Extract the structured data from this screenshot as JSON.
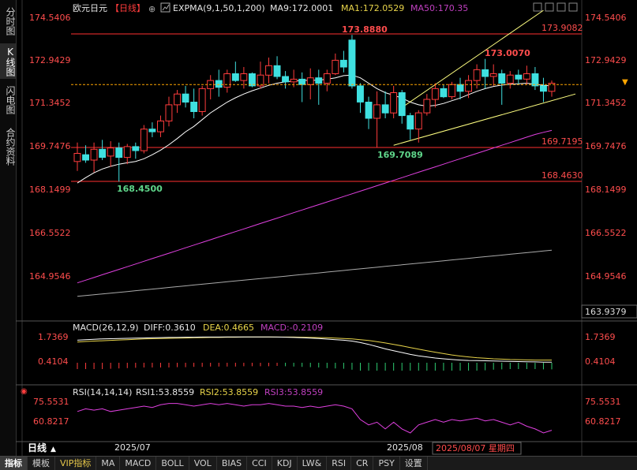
{
  "sidebar": {
    "tabs": [
      {
        "label": "分时图",
        "active": false
      },
      {
        "label": "K线图",
        "active": true
      },
      {
        "label": "闪电图",
        "active": false
      },
      {
        "label": "合约资料",
        "active": false
      }
    ]
  },
  "header": {
    "symbol": "欧元日元",
    "period": "【日线】",
    "indicator": "EXPMA(9,1,50,1,200)",
    "ma9": "MA9:172.0001",
    "ma1": "MA1:172.0529",
    "ma50": "MA50:170.35"
  },
  "colors": {
    "up": "#ff3c3c",
    "down": "#3fe0e0",
    "ma9": "#ffffff",
    "ma50": "#e040e0",
    "ma200": "#aaaaaa",
    "channel": "#ffff80",
    "hline": "#ff3030",
    "axis_text": "#ff4d4d",
    "label_green": "#5fd68a"
  },
  "price_axis": {
    "ticks": [
      "174.5406",
      "172.9429",
      "171.3452",
      "169.7476",
      "168.1499",
      "166.5522",
      "164.9546"
    ],
    "min_price_label": "163.9379"
  },
  "annotations": {
    "high": "173.8880",
    "low1": "168.4500",
    "low2": "169.7089",
    "recent_high": "173.0070",
    "level_1": "173.9082",
    "level_2": "169.7195",
    "level_3": "168.4630"
  },
  "macd": {
    "title": "MACD(26,12,9)",
    "diff": "DIFF:0.3610",
    "dea": "DEA:0.4665",
    "macd": "MACD:-0.2109",
    "ticks": [
      "1.7369",
      "0.4104"
    ]
  },
  "rsi": {
    "title": "RSI(14,14,14)",
    "rsi1": "RSI1:53.8559",
    "rsi2": "RSI2:53.8559",
    "rsi3": "RSI3:53.8559",
    "ticks": [
      "75.5531",
      "60.8217"
    ]
  },
  "xaxis": {
    "period_label": "日线",
    "labels": [
      "2025/07",
      "2025/08"
    ],
    "cursor_date": "2025/08/07 星期四"
  },
  "bottom_tabs": [
    "指标",
    "模板",
    "VIP指标",
    "MA",
    "MACD",
    "BOLL",
    "VOL",
    "BIAS",
    "CCI",
    "KDJ",
    "LW&",
    "RSI",
    "CR",
    "PSY",
    "设置"
  ],
  "chart_data": {
    "type": "candlestick",
    "candles": [
      {
        "o": 169.2,
        "h": 169.9,
        "l": 168.85,
        "c": 169.5
      },
      {
        "o": 169.45,
        "h": 169.8,
        "l": 169.15,
        "c": 169.25
      },
      {
        "o": 169.25,
        "h": 169.9,
        "l": 168.8,
        "c": 169.65
      },
      {
        "o": 169.65,
        "h": 170.0,
        "l": 169.25,
        "c": 169.35
      },
      {
        "o": 169.4,
        "h": 169.95,
        "l": 169.0,
        "c": 169.7
      },
      {
        "o": 169.7,
        "h": 169.9,
        "l": 168.45,
        "c": 169.35
      },
      {
        "o": 169.35,
        "h": 169.85,
        "l": 169.1,
        "c": 169.75
      },
      {
        "o": 169.75,
        "h": 169.9,
        "l": 169.3,
        "c": 169.6
      },
      {
        "o": 169.6,
        "h": 170.55,
        "l": 169.5,
        "c": 170.4
      },
      {
        "o": 170.4,
        "h": 170.65,
        "l": 170.1,
        "c": 170.3
      },
      {
        "o": 170.3,
        "h": 170.9,
        "l": 170.1,
        "c": 170.7
      },
      {
        "o": 170.7,
        "h": 171.6,
        "l": 170.5,
        "c": 171.3
      },
      {
        "o": 171.3,
        "h": 171.85,
        "l": 171.0,
        "c": 171.7
      },
      {
        "o": 171.7,
        "h": 172.0,
        "l": 171.2,
        "c": 171.4
      },
      {
        "o": 171.4,
        "h": 171.9,
        "l": 170.8,
        "c": 171.05
      },
      {
        "o": 171.05,
        "h": 172.0,
        "l": 170.9,
        "c": 171.9
      },
      {
        "o": 171.9,
        "h": 172.4,
        "l": 171.5,
        "c": 172.2
      },
      {
        "o": 172.2,
        "h": 172.6,
        "l": 171.6,
        "c": 171.95
      },
      {
        "o": 171.95,
        "h": 172.6,
        "l": 171.75,
        "c": 172.45
      },
      {
        "o": 172.45,
        "h": 172.9,
        "l": 172.15,
        "c": 172.2
      },
      {
        "o": 172.2,
        "h": 172.7,
        "l": 171.9,
        "c": 172.45
      },
      {
        "o": 172.45,
        "h": 172.5,
        "l": 171.95,
        "c": 172.0
      },
      {
        "o": 172.0,
        "h": 172.9,
        "l": 171.9,
        "c": 172.4
      },
      {
        "o": 172.4,
        "h": 173.05,
        "l": 172.1,
        "c": 172.75
      },
      {
        "o": 172.75,
        "h": 173.1,
        "l": 172.25,
        "c": 172.35
      },
      {
        "o": 172.35,
        "h": 172.55,
        "l": 171.9,
        "c": 172.15
      },
      {
        "o": 172.15,
        "h": 172.6,
        "l": 171.95,
        "c": 172.25
      },
      {
        "o": 172.25,
        "h": 172.5,
        "l": 171.4,
        "c": 172.05
      },
      {
        "o": 172.05,
        "h": 172.65,
        "l": 171.5,
        "c": 172.3
      },
      {
        "o": 172.3,
        "h": 172.6,
        "l": 171.3,
        "c": 172.1
      },
      {
        "o": 172.1,
        "h": 172.6,
        "l": 171.8,
        "c": 172.45
      },
      {
        "o": 172.45,
        "h": 173.2,
        "l": 172.4,
        "c": 172.95
      },
      {
        "o": 172.95,
        "h": 173.3,
        "l": 172.5,
        "c": 172.7
      },
      {
        "o": 173.7,
        "h": 173.89,
        "l": 171.9,
        "c": 172.0
      },
      {
        "o": 172.0,
        "h": 172.1,
        "l": 171.0,
        "c": 171.4
      },
      {
        "o": 171.4,
        "h": 171.6,
        "l": 170.4,
        "c": 170.8
      },
      {
        "o": 170.8,
        "h": 171.8,
        "l": 169.71,
        "c": 171.3
      },
      {
        "o": 171.3,
        "h": 171.8,
        "l": 170.8,
        "c": 171.0
      },
      {
        "o": 171.0,
        "h": 172.0,
        "l": 170.8,
        "c": 171.75
      },
      {
        "o": 171.75,
        "h": 171.85,
        "l": 170.6,
        "c": 170.9
      },
      {
        "o": 170.9,
        "h": 171.0,
        "l": 170.0,
        "c": 170.4
      },
      {
        "o": 170.4,
        "h": 171.1,
        "l": 169.9,
        "c": 171.0
      },
      {
        "o": 171.0,
        "h": 171.7,
        "l": 170.9,
        "c": 171.5
      },
      {
        "o": 171.5,
        "h": 172.1,
        "l": 171.2,
        "c": 171.9
      },
      {
        "o": 171.9,
        "h": 172.05,
        "l": 171.55,
        "c": 171.6
      },
      {
        "o": 171.6,
        "h": 172.15,
        "l": 171.5,
        "c": 172.05
      },
      {
        "o": 172.05,
        "h": 172.3,
        "l": 171.5,
        "c": 171.8
      },
      {
        "o": 171.8,
        "h": 172.4,
        "l": 171.55,
        "c": 172.2
      },
      {
        "o": 172.2,
        "h": 172.8,
        "l": 171.9,
        "c": 172.6
      },
      {
        "o": 172.6,
        "h": 173.0,
        "l": 171.9,
        "c": 172.35
      },
      {
        "o": 172.35,
        "h": 172.8,
        "l": 172.0,
        "c": 172.45
      },
      {
        "o": 172.45,
        "h": 172.6,
        "l": 171.3,
        "c": 172.1
      },
      {
        "o": 172.1,
        "h": 172.55,
        "l": 171.9,
        "c": 172.4
      },
      {
        "o": 172.4,
        "h": 172.6,
        "l": 172.05,
        "c": 172.25
      },
      {
        "o": 172.25,
        "h": 172.75,
        "l": 172.05,
        "c": 172.45
      },
      {
        "o": 172.45,
        "h": 172.7,
        "l": 171.85,
        "c": 172.0
      },
      {
        "o": 172.0,
        "h": 172.3,
        "l": 171.4,
        "c": 171.8
      },
      {
        "o": 171.8,
        "h": 172.2,
        "l": 171.6,
        "c": 172.1
      }
    ],
    "ma9": [
      168.4,
      168.6,
      168.78,
      168.92,
      169.02,
      169.1,
      169.15,
      169.2,
      169.3,
      169.45,
      169.62,
      169.82,
      170.05,
      170.3,
      170.5,
      170.75,
      171.0,
      171.2,
      171.4,
      171.56,
      171.7,
      171.82,
      171.92,
      172.02,
      172.1,
      172.15,
      172.18,
      172.2,
      172.21,
      172.21,
      172.25,
      172.3,
      172.38,
      172.4,
      172.3,
      172.1,
      171.9,
      171.75,
      171.65,
      171.55,
      171.4,
      171.3,
      171.25,
      171.28,
      171.35,
      171.45,
      171.55,
      171.68,
      171.8,
      171.9,
      171.98,
      172.03,
      172.06,
      172.08,
      172.1,
      172.06,
      172.02,
      172.0
    ],
    "ma50": [
      164.7,
      164.8,
      164.9,
      165.0,
      165.1,
      165.2,
      165.3,
      165.4,
      165.5,
      165.6,
      165.7,
      165.8,
      165.9,
      166.0,
      166.1,
      166.2,
      166.3,
      166.4,
      166.5,
      166.6,
      166.7,
      166.8,
      166.9,
      167.0,
      167.1,
      167.2,
      167.3,
      167.4,
      167.5,
      167.6,
      167.7,
      167.8,
      167.9,
      168.0,
      168.1,
      168.2,
      168.3,
      168.4,
      168.5,
      168.6,
      168.7,
      168.8,
      168.9,
      169.0,
      169.1,
      169.2,
      169.3,
      169.4,
      169.5,
      169.6,
      169.7,
      169.8,
      169.9,
      170.0,
      170.1,
      170.2,
      170.28,
      170.35
    ],
    "ma200": [
      164.2,
      164.23,
      164.26,
      164.29,
      164.32,
      164.35,
      164.38,
      164.41,
      164.44,
      164.47,
      164.5,
      164.53,
      164.56,
      164.59,
      164.62,
      164.65,
      164.68,
      164.71,
      164.74,
      164.77,
      164.8,
      164.83,
      164.86,
      164.89,
      164.92,
      164.95,
      164.98,
      165.01,
      165.04,
      165.07,
      165.1,
      165.13,
      165.16,
      165.19,
      165.22,
      165.25,
      165.28,
      165.31,
      165.34,
      165.37,
      165.4,
      165.43,
      165.46,
      165.49,
      165.52,
      165.55,
      165.58,
      165.61,
      165.64,
      165.67,
      165.7,
      165.73,
      165.76,
      165.79,
      165.82,
      165.85,
      165.88,
      165.91
    ],
    "channel": {
      "upper": [
        [
          39,
          171.2
        ],
        [
          56,
          174.8
        ]
      ],
      "lower": [
        [
          38,
          169.8
        ],
        [
          57,
          171.7
        ]
      ]
    },
    "current_price": 172.05,
    "macd_diff": [
      1.55,
      1.58,
      1.6,
      1.62,
      1.63,
      1.64,
      1.65,
      1.66,
      1.67,
      1.68,
      1.69,
      1.7,
      1.7,
      1.71,
      1.71,
      1.72,
      1.72,
      1.72,
      1.73,
      1.73,
      1.73,
      1.73,
      1.73,
      1.73,
      1.72,
      1.71,
      1.7,
      1.68,
      1.66,
      1.64,
      1.61,
      1.58,
      1.55,
      1.5,
      1.42,
      1.32,
      1.2,
      1.08,
      0.98,
      0.88,
      0.78,
      0.7,
      0.64,
      0.58,
      0.54,
      0.5,
      0.47,
      0.45,
      0.44,
      0.43,
      0.42,
      0.41,
      0.4,
      0.39,
      0.38,
      0.37,
      0.36,
      0.36
    ],
    "macd_dea": [
      1.45,
      1.48,
      1.5,
      1.52,
      1.54,
      1.56,
      1.58,
      1.6,
      1.62,
      1.63,
      1.64,
      1.65,
      1.66,
      1.67,
      1.68,
      1.69,
      1.7,
      1.7,
      1.71,
      1.71,
      1.72,
      1.72,
      1.72,
      1.72,
      1.72,
      1.72,
      1.72,
      1.71,
      1.7,
      1.69,
      1.68,
      1.66,
      1.64,
      1.62,
      1.58,
      1.53,
      1.47,
      1.4,
      1.32,
      1.24,
      1.15,
      1.06,
      0.98,
      0.9,
      0.82,
      0.75,
      0.69,
      0.64,
      0.6,
      0.57,
      0.54,
      0.52,
      0.5,
      0.49,
      0.48,
      0.47,
      0.47,
      0.47
    ],
    "rsi": [
      68,
      70,
      69,
      70,
      68,
      69,
      70,
      71,
      72,
      71,
      73,
      74,
      74,
      73,
      72,
      73,
      74,
      73,
      74,
      73,
      72,
      73,
      73,
      74,
      73,
      72,
      72,
      71,
      72,
      71,
      72,
      73,
      72,
      70,
      62,
      58,
      60,
      55,
      60,
      55,
      52,
      58,
      60,
      62,
      60,
      62,
      61,
      62,
      63,
      61,
      62,
      60,
      58,
      60,
      57,
      55,
      52,
      54
    ]
  }
}
